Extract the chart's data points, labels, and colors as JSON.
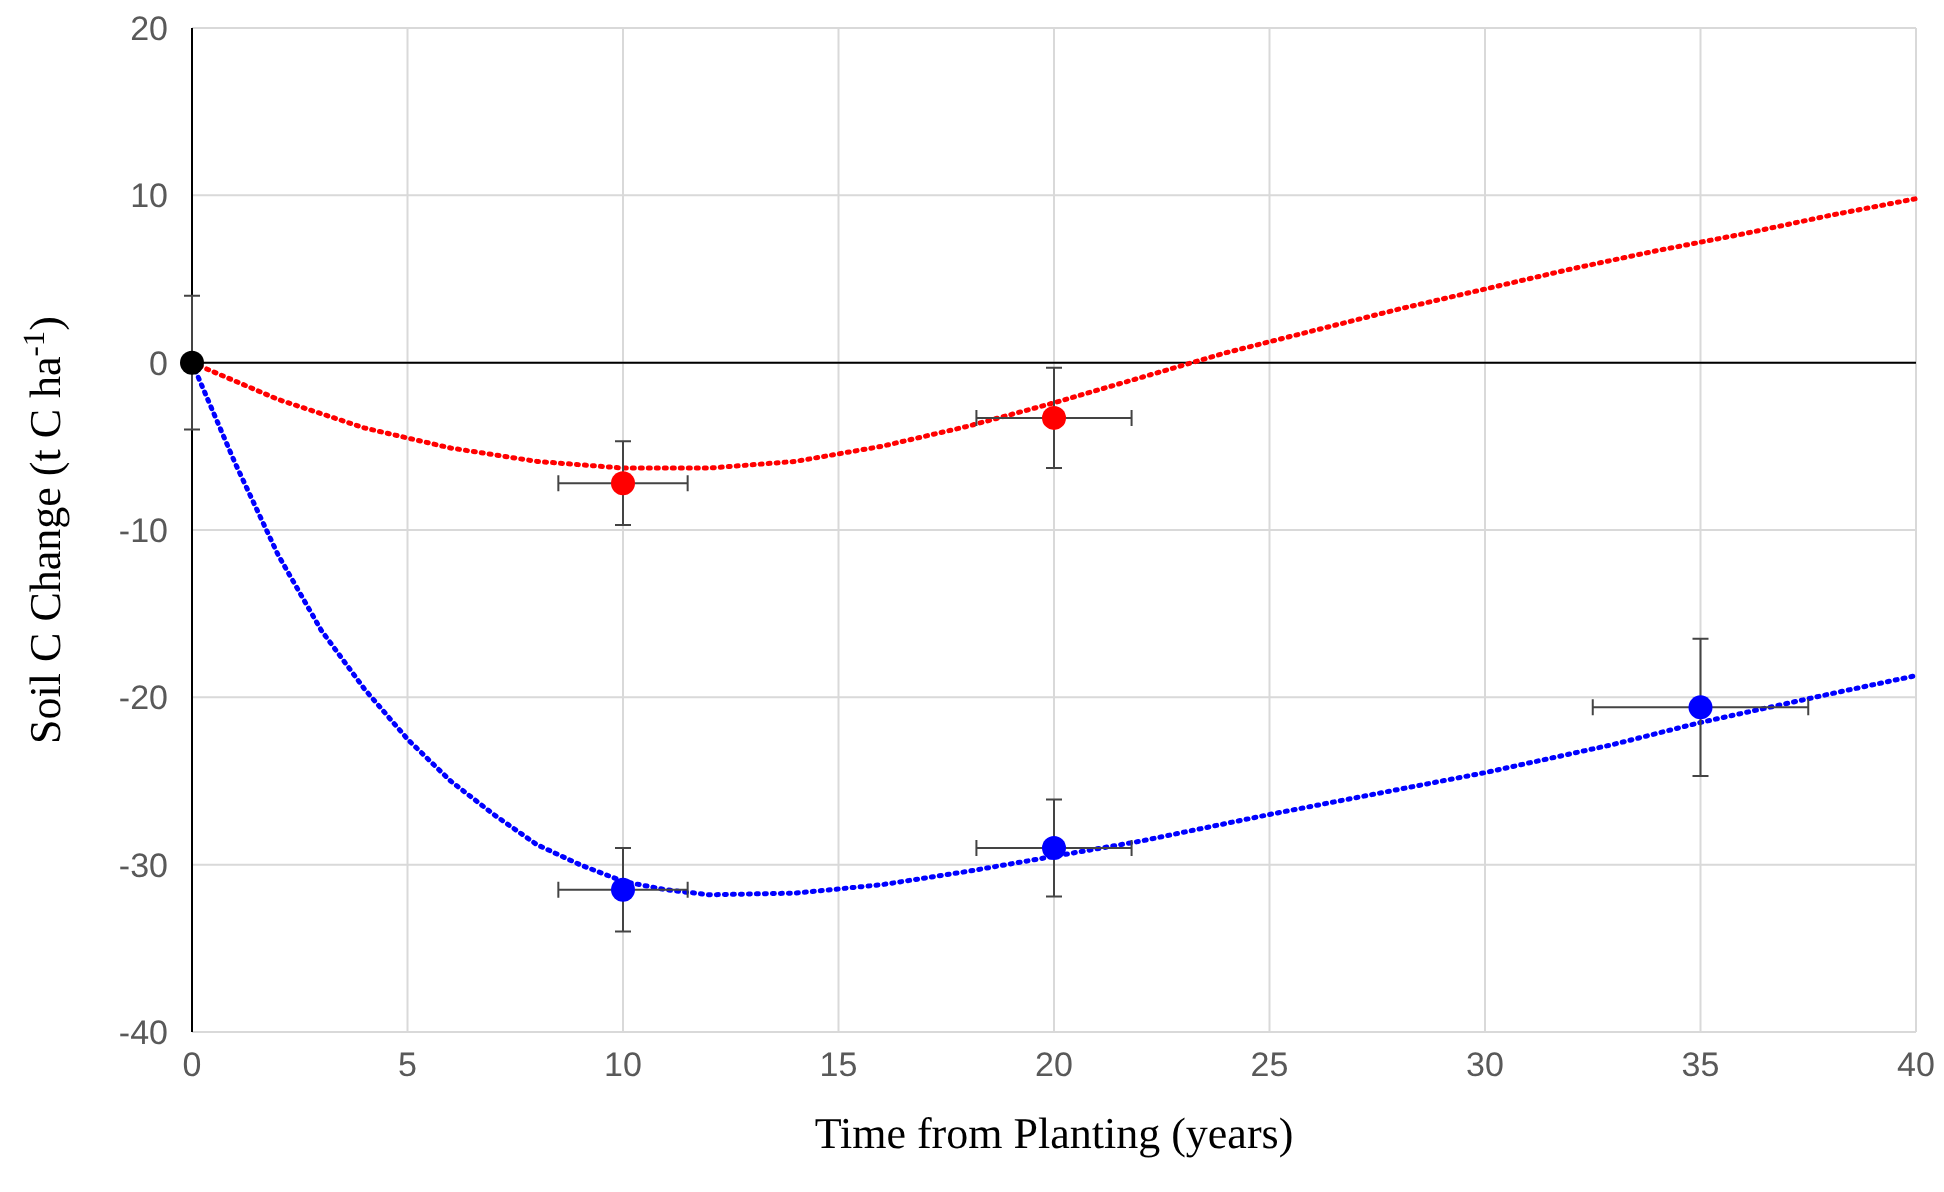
{
  "chart_data": {
    "type": "scatter",
    "xlabel": "Time from Planting (years)",
    "ylabel": "Soil C Change (t C ha$^{-1}$)",
    "xlim": [
      0,
      40
    ],
    "xticks": [
      0,
      5,
      10,
      15,
      20,
      25,
      30,
      35,
      40
    ],
    "ylim": [
      -40,
      20
    ],
    "yticks": [
      -40,
      -30,
      -20,
      -10,
      0,
      10,
      20
    ],
    "grid": true,
    "ref_lines": [
      {
        "axis": "y",
        "value": 0,
        "color": "#000000"
      }
    ],
    "series": [
      {
        "type": "line",
        "color": "#ff0000",
        "line_style": "dotted",
        "x": [
          0,
          2,
          4,
          6,
          8,
          10,
          12,
          14,
          16,
          18,
          20,
          22,
          24,
          26,
          28,
          30,
          32,
          34,
          36,
          38,
          40
        ],
        "values": [
          0,
          -2.2,
          -3.9,
          -5.1,
          -5.9,
          -6.3,
          -6.3,
          -5.9,
          -5,
          -3.8,
          -2.4,
          -0.9,
          0.6,
          1.9,
          3.2,
          4.4,
          5.6,
          6.7,
          7.7,
          8.8,
          9.8
        ]
      },
      {
        "type": "line",
        "color": "#0000ff",
        "line_style": "dotted",
        "x": [
          0,
          1,
          2,
          3,
          4,
          5,
          6,
          7,
          8,
          9,
          10,
          11,
          12,
          14,
          16,
          18,
          20,
          22,
          25,
          28,
          30,
          33,
          35,
          38,
          40
        ],
        "values": [
          0,
          -6,
          -11.5,
          -16,
          -19.5,
          -22.5,
          -25,
          -27,
          -28.8,
          -30,
          -31,
          -31.5,
          -31.8,
          -31.7,
          -31.2,
          -30.4,
          -29.5,
          -28.6,
          -27,
          -25.5,
          -24.5,
          -22.8,
          -21.5,
          -19.8,
          -18.7
        ]
      },
      {
        "color": "#ff0000",
        "marker": "circle",
        "x": [
          10,
          20
        ],
        "values": [
          -7.2,
          -3.3
        ],
        "errors": [
          2.5,
          3
        ],
        "xerrors": [
          1.5,
          1.8
        ]
      },
      {
        "color": "#0000ff",
        "marker": "circle",
        "x": [
          10,
          20,
          35
        ],
        "values": [
          -31.5,
          -29,
          -20.6
        ],
        "errors": [
          2.5,
          2.9,
          4.1
        ],
        "xerrors": [
          1.5,
          1.8,
          2.5
        ]
      },
      {
        "color": "#000000",
        "marker": "circle",
        "x": [
          0
        ],
        "values": [
          0
        ],
        "errors": [
          4
        ],
        "xerrors": [
          null
        ]
      }
    ]
  }
}
